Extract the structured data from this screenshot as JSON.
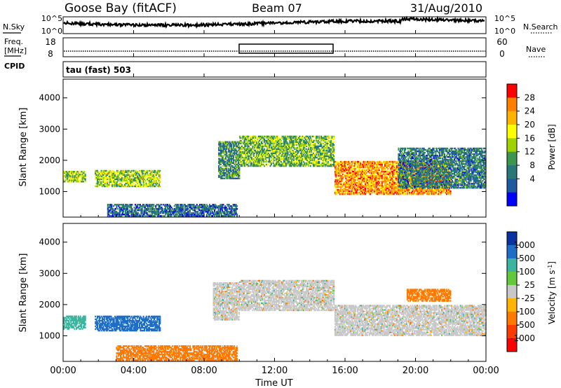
{
  "header": {
    "station": "Goose Bay (fitACF)",
    "beam": "Beam 07",
    "date": "31/Aug/2010"
  },
  "status_panel": {
    "nsky_label": "N.Sky",
    "nsearch_label": "N.Search",
    "freq_label_1": "Freq.",
    "freq_label_2": "[MHz]",
    "nave_label": "Nave",
    "cpid_label": "CPID",
    "cpid_text": "tau (fast) 503",
    "noise_ticks": [
      "10^5",
      "10^0"
    ],
    "freq_ticks_left": [
      "18",
      "8"
    ],
    "freq_ticks_right": [
      "60",
      "0"
    ]
  },
  "power_panel": {
    "ylabel": "Slant Range [km]",
    "colorbar_label": "Power [dB]",
    "colorbar_ticks": [
      "28",
      "24",
      "20",
      "16",
      "12",
      "8",
      "4"
    ],
    "colorbar_colors": [
      "#ff0000",
      "#ff7f00",
      "#ffb400",
      "#ffff00",
      "#a0d200",
      "#3c9650",
      "#287878",
      "#1e5aa0",
      "#0000ff"
    ]
  },
  "velocity_panel": {
    "ylabel": "Slant Range [km]",
    "colorbar_label": "Velocity [m s^-1]",
    "colorbar_ticks": [
      "1000",
      "500",
      "100",
      "25",
      "-25",
      "-100",
      "-500",
      "-1000"
    ],
    "colorbar_colors": [
      "#0a32a0",
      "#1e6ec8",
      "#3cb4a0",
      "#64c83c",
      "#c8c8c8",
      "#ffb400",
      "#ff7800",
      "#ff3c00",
      "#ff0000"
    ]
  },
  "xaxis": {
    "label": "Time UT",
    "tick_labels": [
      "00:00",
      "04:00",
      "08:00",
      "12:00",
      "16:00",
      "20:00",
      "00:00"
    ]
  },
  "chart_data": [
    {
      "type": "heatmap",
      "name": "Power",
      "xlabel": "Time UT",
      "ylabel": "Slant Range [km]",
      "xlim": [
        0,
        24
      ],
      "ylim": [
        180,
        4600
      ],
      "yticks": [
        1000,
        2000,
        3000,
        4000
      ],
      "clim": [
        0,
        32
      ],
      "scatter_regions": [
        {
          "t0": 0.0,
          "t1": 1.3,
          "r0": 1300,
          "r1": 1650,
          "value": 18
        },
        {
          "t0": 1.8,
          "t1": 5.5,
          "r0": 1150,
          "r1": 1700,
          "value": 18
        },
        {
          "t0": 2.5,
          "t1": 9.9,
          "r0": 200,
          "r1": 600,
          "value": 8
        },
        {
          "t0": 8.8,
          "t1": 10.0,
          "r0": 1400,
          "r1": 2600,
          "value": 12
        },
        {
          "t0": 10.0,
          "t1": 15.4,
          "r0": 1800,
          "r1": 2800,
          "value": 16
        },
        {
          "t0": 15.4,
          "t1": 22.0,
          "r0": 900,
          "r1": 2000,
          "value": 28
        },
        {
          "t0": 19.0,
          "t1": 24.0,
          "r0": 1100,
          "r1": 2400,
          "value": 10
        }
      ]
    },
    {
      "type": "heatmap",
      "name": "Velocity",
      "xlabel": "Time UT",
      "ylabel": "Slant Range [km]",
      "xlim": [
        0,
        24
      ],
      "ylim": [
        180,
        4600
      ],
      "yticks": [
        1000,
        2000,
        3000,
        4000
      ],
      "clim": [
        -1000,
        1000
      ],
      "scatter_regions": [
        {
          "t0": 0.0,
          "t1": 1.3,
          "r0": 1200,
          "r1": 1650,
          "value": 100
        },
        {
          "t0": 1.8,
          "t1": 5.5,
          "r0": 1150,
          "r1": 1650,
          "value": 500
        },
        {
          "t0": 3.0,
          "t1": 9.9,
          "r0": 200,
          "r1": 700,
          "value": -100
        },
        {
          "t0": 8.5,
          "t1": 10.0,
          "r0": 1500,
          "r1": 2700,
          "value": 0
        },
        {
          "t0": 10.0,
          "t1": 15.4,
          "r0": 1800,
          "r1": 2800,
          "value": 0
        },
        {
          "t0": 15.4,
          "t1": 24.0,
          "r0": 1000,
          "r1": 2000,
          "value": 0
        },
        {
          "t0": 19.5,
          "t1": 22.0,
          "r0": 2100,
          "r1": 2500,
          "value": -100
        }
      ]
    }
  ]
}
